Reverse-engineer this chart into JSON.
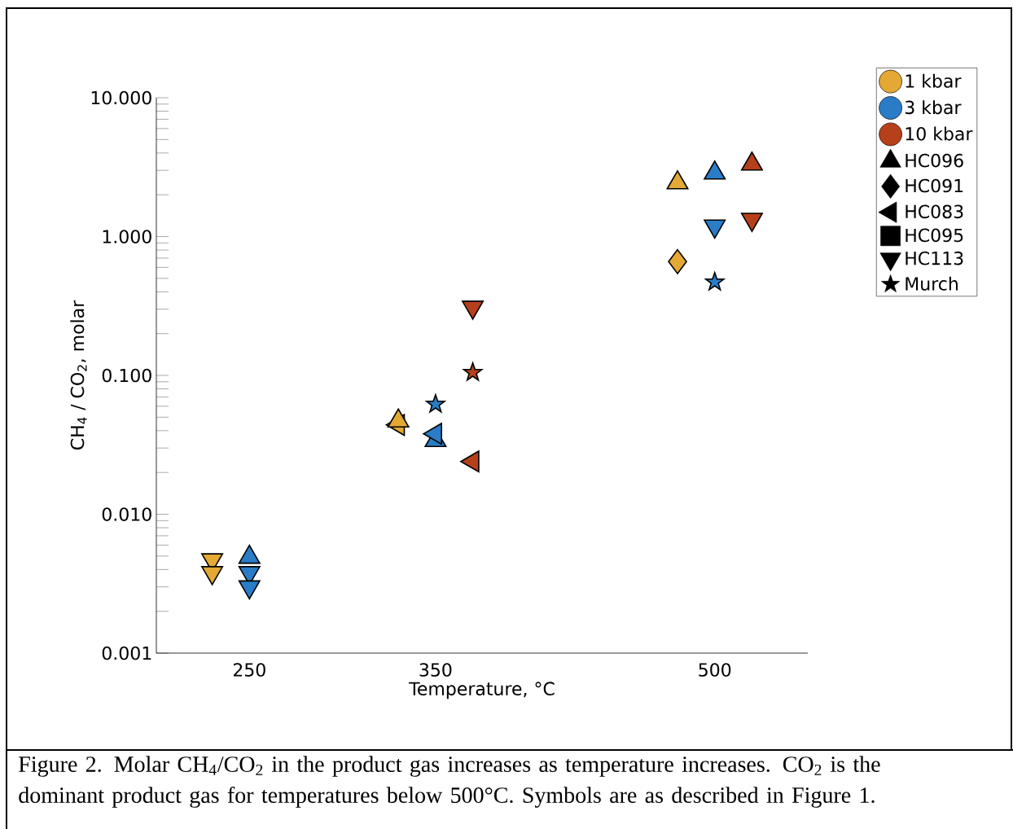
{
  "chart_data": {
    "type": "scatter",
    "xlabel": "Temperature, °C",
    "ylabel": "CH$_{4}$ / CO$_{2}$, molar",
    "annotations": [
      "Figure 2. Molar CH$_{4}$/CO$_{2}$ in the product gas increases as temperature increases. CO$_{2}$ is the dominant product gas for temperatures below 500°C. Symbols are as described in Figure 1."
    ],
    "xlim": [
      200,
      550
    ],
    "xticks": [
      250,
      350,
      500
    ],
    "ylim": [
      0.001,
      10
    ],
    "yticks": [
      {
        "value": 0.001,
        "label": "0.001"
      },
      {
        "value": 0.01,
        "label": "0.010"
      },
      {
        "value": 0.1,
        "label": "0.100"
      },
      {
        "value": 1,
        "label": "1.000"
      },
      {
        "value": 10,
        "label": "10.000"
      }
    ],
    "log": "y",
    "grid": false,
    "legend": "right",
    "series": [
      {
        "name": "1 kbar",
        "color": "#e3a934",
        "marker": "circle"
      },
      {
        "name": "3 kbar",
        "color": "#2a7cc7",
        "marker": "circle"
      },
      {
        "name": "10 kbar",
        "color": "#b5401a",
        "marker": "circle"
      },
      {
        "name": "HC096",
        "color": "#000000",
        "marker": "triangle"
      },
      {
        "name": "HC091",
        "color": "#000000",
        "marker": "diamond"
      },
      {
        "name": "HC083",
        "color": "#000000",
        "marker": "triangle-left"
      },
      {
        "name": "HC095",
        "color": "#000000",
        "marker": "square"
      },
      {
        "name": "HC113",
        "color": "#000000",
        "marker": "triangle-down"
      },
      {
        "name": "Murch",
        "color": "#000000",
        "marker": "star"
      },
      {
        "color": "#e3a934",
        "marker": "triangle-down",
        "x": [
          230,
          230
        ],
        "values": [
          0.0047,
          0.0038
        ]
      },
      {
        "color": "#e3a934",
        "marker": "triangle-left",
        "x": [
          330
        ],
        "values": [
          0.044
        ]
      },
      {
        "color": "#e3a934",
        "marker": "triangle",
        "x": [
          330,
          480
        ],
        "values": [
          0.047,
          2.44
        ]
      },
      {
        "color": "#e3a934",
        "marker": "diamond",
        "x": [
          480
        ],
        "values": [
          0.66
        ]
      },
      {
        "color": "#2a7cc7",
        "marker": "triangle",
        "x": [
          250,
          350,
          500
        ],
        "values": [
          0.0049,
          0.034,
          2.87
        ]
      },
      {
        "color": "#2a7cc7",
        "marker": "triangle-down",
        "x": [
          250,
          250,
          500
        ],
        "values": [
          0.0038,
          0.003,
          1.19
        ]
      },
      {
        "color": "#2a7cc7",
        "marker": "star",
        "x": [
          350,
          500
        ],
        "values": [
          0.062,
          0.47
        ]
      },
      {
        "color": "#2a7cc7",
        "marker": "triangle-left",
        "x": [
          350
        ],
        "values": [
          0.038
        ]
      },
      {
        "color": "#b5401a",
        "marker": "triangle-down",
        "x": [
          370,
          520
        ],
        "values": [
          0.31,
          1.33
        ]
      },
      {
        "color": "#b5401a",
        "marker": "star",
        "x": [
          370
        ],
        "values": [
          0.105
        ]
      },
      {
        "color": "#b5401a",
        "marker": "triangle-left",
        "x": [
          370
        ],
        "values": [
          0.024
        ]
      },
      {
        "color": "#b5401a",
        "marker": "triangle",
        "x": [
          520
        ],
        "values": [
          3.33
        ]
      }
    ]
  }
}
